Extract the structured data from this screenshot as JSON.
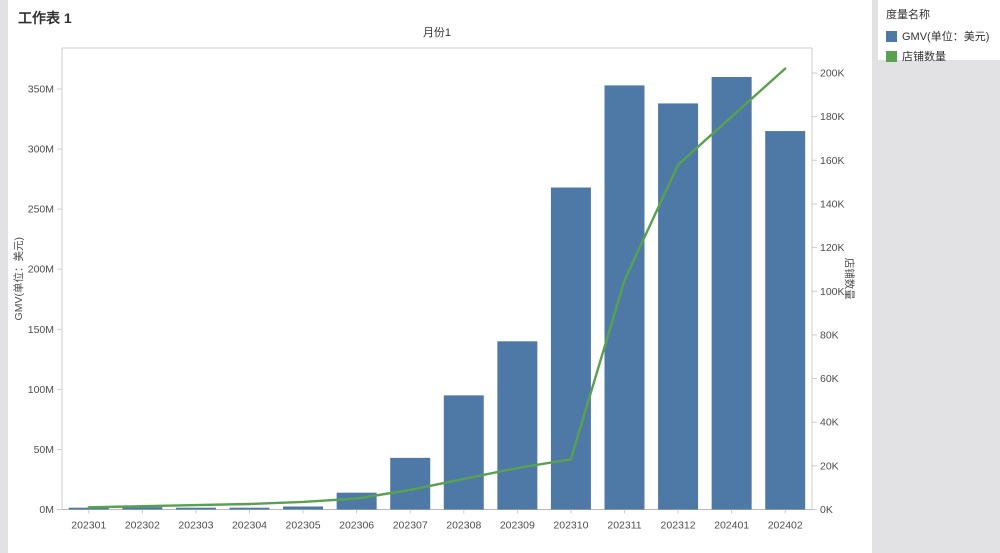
{
  "title": "工作表 1",
  "legend": {
    "title": "度量名称",
    "items": [
      {
        "label": "GMV(单位：美元)",
        "color": "#4e79a7"
      },
      {
        "label": "店铺数量",
        "color": "#59a14f"
      }
    ]
  },
  "chart_data": {
    "type": "bar+line",
    "title": "工作表 1",
    "x_axis_title": "月份1",
    "left_axis_title": "GMV(单位：美元)",
    "right_axis_title": "店铺数量",
    "categories": [
      "202301",
      "202302",
      "202303",
      "202304",
      "202305",
      "202306",
      "202307",
      "202308",
      "202309",
      "202310",
      "202311",
      "202312",
      "202401",
      "202402"
    ],
    "series": [
      {
        "name": "GMV(单位：美元)",
        "type": "bar",
        "axis": "left",
        "unit": "M (USD)",
        "color": "#4e79a7",
        "values": [
          1.5,
          2,
          1.5,
          1.5,
          2.5,
          14,
          43,
          95,
          140,
          268,
          353,
          338,
          360,
          315
        ]
      },
      {
        "name": "店铺数量",
        "type": "line",
        "axis": "right",
        "unit": "K",
        "color": "#59a14f",
        "values": [
          1,
          1.5,
          2,
          2.5,
          3.5,
          5,
          9,
          14,
          19,
          23,
          105,
          158,
          180,
          202
        ]
      }
    ],
    "left_axis": {
      "min": 0,
      "max": 350,
      "unit": "M"
    },
    "right_axis": {
      "min": 0,
      "max": 200,
      "unit": "K"
    },
    "left_ticks": [
      {
        "value": 0,
        "label": "0M"
      },
      {
        "value": 50,
        "label": "50M"
      },
      {
        "value": 100,
        "label": "100M"
      },
      {
        "value": 150,
        "label": "150M"
      },
      {
        "value": 200,
        "label": "200M"
      },
      {
        "value": 250,
        "label": "250M"
      },
      {
        "value": 300,
        "label": "300M"
      },
      {
        "value": 350,
        "label": "350M"
      }
    ],
    "right_ticks": [
      {
        "value": 0,
        "label": "0K"
      },
      {
        "value": 20,
        "label": "20K"
      },
      {
        "value": 40,
        "label": "40K"
      },
      {
        "value": 60,
        "label": "60K"
      },
      {
        "value": 80,
        "label": "80K"
      },
      {
        "value": 100,
        "label": "100K"
      },
      {
        "value": 120,
        "label": "120K"
      },
      {
        "value": 140,
        "label": "140K"
      },
      {
        "value": 160,
        "label": "160K"
      },
      {
        "value": 180,
        "label": "180K"
      },
      {
        "value": 200,
        "label": "200K"
      }
    ],
    "grid": false,
    "legend_position": "top-right"
  }
}
